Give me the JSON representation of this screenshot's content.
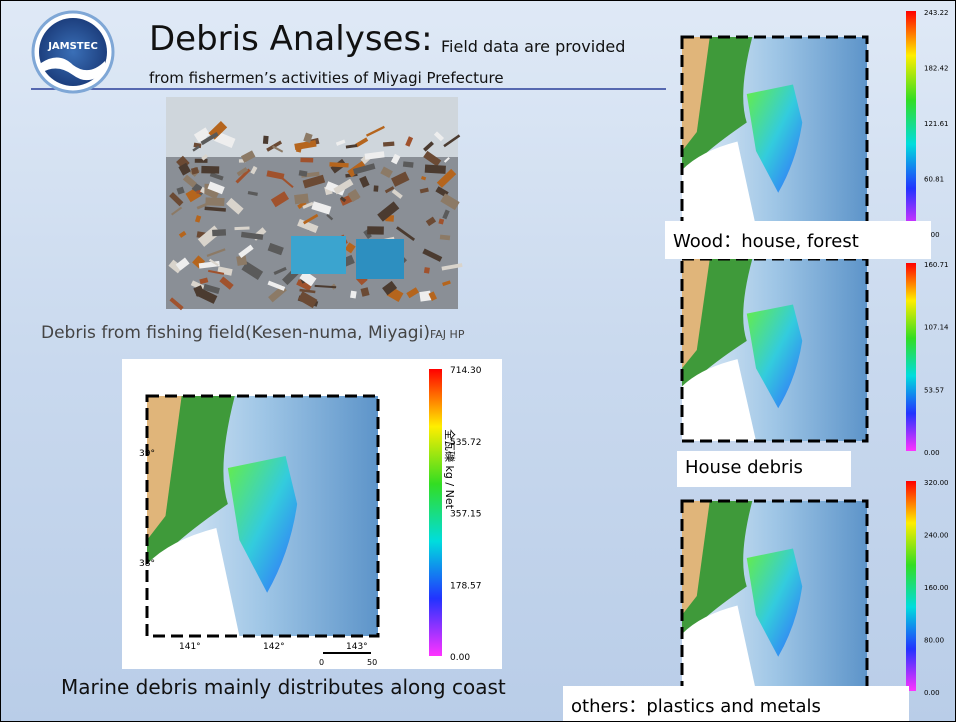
{
  "header": {
    "logo": "JAMSTEC",
    "title": "Debris Analyses:",
    "title_note": "Field data are provided",
    "subtitle": "from fishermen’s activities of Miyagi Prefecture"
  },
  "photo": {
    "caption": "Debris from fishing field(Kesen-numa, Miyagi)",
    "source": "FAJ HP"
  },
  "main_map": {
    "caption": "Marine debris mainly distributes along coast",
    "colorbar_label": "全瓦礫 kg / Net",
    "colorbar_ticks": [
      "714.30",
      "535.72",
      "357.15",
      "178.57",
      "0.00"
    ],
    "lat_labels": [
      "39°",
      "38°"
    ],
    "lon_labels": [
      "141°",
      "142°",
      "143°"
    ],
    "scale_labels": [
      "0",
      "50"
    ]
  },
  "panels": [
    {
      "label": "Wood：house, forest",
      "colorbar_ticks": [
        "243.22",
        "182.42",
        "121.61",
        "60.81",
        "0.00"
      ]
    },
    {
      "label": "House debris",
      "colorbar_ticks": [
        "160.71",
        "107.14",
        "53.57",
        "0.00"
      ]
    },
    {
      "label": "others：plastics and metals",
      "colorbar_ticks": [
        "320.00",
        "240.00",
        "160.00",
        "80.00",
        "0.00"
      ]
    }
  ]
}
